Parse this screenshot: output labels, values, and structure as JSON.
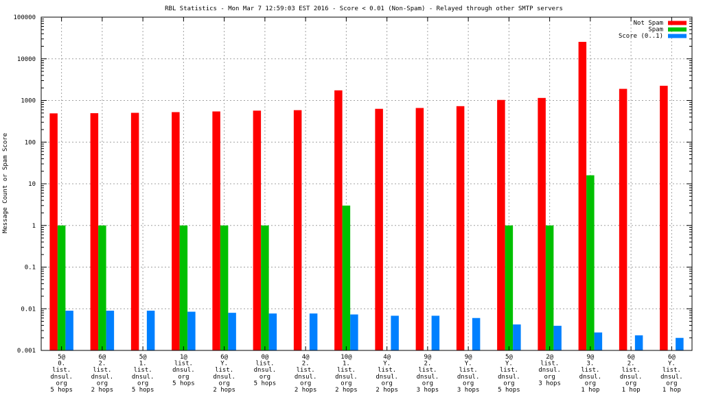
{
  "chart_data": {
    "type": "bar",
    "title": "RBL Statistics - Mon Mar  7 12:59:03 EST 2016 - Score < 0.01 (Non-Spam) - Relayed through other SMTP servers",
    "xlabel": "",
    "ylabel": "Message Count or Spam Score",
    "yscale": "log",
    "ylim": [
      0.001,
      100000
    ],
    "y_ticks": [
      "0.001",
      "0.01",
      "0.1",
      "1",
      "10",
      "100",
      "1000",
      "10000",
      "100000"
    ],
    "grid": true,
    "legend_position": "top-right",
    "categories": [
      [
        "5@",
        "0.",
        "list.",
        "dnsul.",
        "org",
        "5 hops"
      ],
      [
        "6@",
        "2.",
        "list.",
        "dnsul.",
        "org",
        "2 hops"
      ],
      [
        "5@",
        "1.",
        "list.",
        "dnsul.",
        "org",
        "5 hops"
      ],
      [
        "1@",
        "list.",
        "dnsul.",
        "org",
        "5 hops"
      ],
      [
        "6@",
        "Y.",
        "list.",
        "dnsul.",
        "org",
        "2 hops"
      ],
      [
        "0@",
        "list.",
        "dnsul.",
        "org",
        "5 hops"
      ],
      [
        "4@",
        "2.",
        "list.",
        "dnsul.",
        "org",
        "2 hops"
      ],
      [
        "10@",
        "1.",
        "list.",
        "dnsul.",
        "org",
        "2 hops"
      ],
      [
        "4@",
        "Y.",
        "list.",
        "dnsul.",
        "org",
        "2 hops"
      ],
      [
        "9@",
        "2.",
        "list.",
        "dnsul.",
        "org",
        "3 hops"
      ],
      [
        "9@",
        "Y.",
        "list.",
        "dnsul.",
        "org",
        "3 hops"
      ],
      [
        "5@",
        "Y.",
        "list.",
        "dnsul.",
        "org",
        "5 hops"
      ],
      [
        "2@",
        "list.",
        "dnsul.",
        "org",
        "3 hops"
      ],
      [
        "9@",
        "3.",
        "list.",
        "dnsul.",
        "org",
        "1 hop"
      ],
      [
        "6@",
        "2.",
        "list.",
        "dnsul.",
        "org",
        "1 hop"
      ],
      [
        "6@",
        "Y.",
        "list.",
        "dnsul.",
        "org",
        "1 hop"
      ]
    ],
    "series": [
      {
        "name": "Not Spam",
        "color": "#ff0000",
        "values": [
          490,
          495,
          505,
          525,
          545,
          570,
          585,
          1750,
          630,
          660,
          730,
          1030,
          1150,
          25500,
          1900,
          2250
        ]
      },
      {
        "name": "Spam",
        "color": "#00c000",
        "values": [
          1,
          1,
          null,
          1,
          1,
          1,
          null,
          3,
          null,
          null,
          null,
          1,
          1,
          16,
          null,
          null
        ]
      },
      {
        "name": "Score (0..1)",
        "color": "#0080ff",
        "values": [
          0.009,
          0.009,
          0.009,
          0.0085,
          0.008,
          0.0077,
          0.0077,
          0.0073,
          0.0068,
          0.0068,
          0.006,
          0.0042,
          0.0039,
          0.0027,
          0.0023,
          0.002
        ]
      }
    ]
  }
}
